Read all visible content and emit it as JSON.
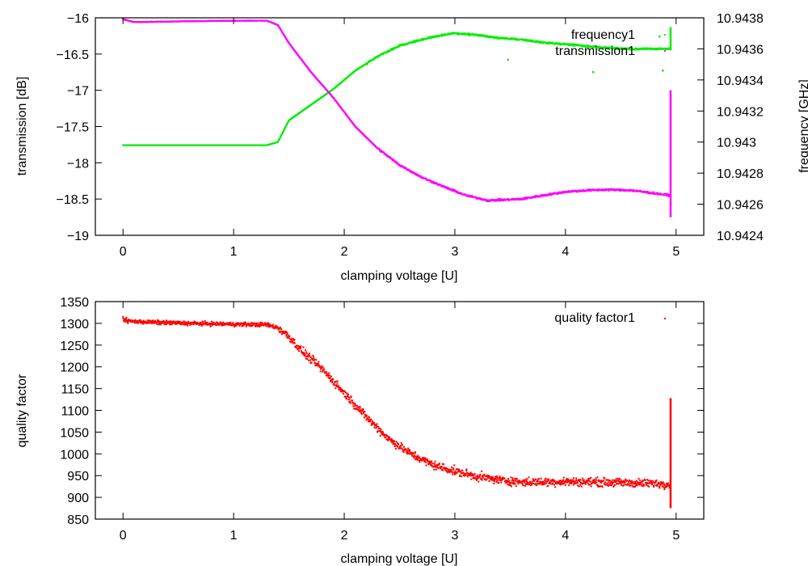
{
  "chart_data": [
    {
      "type": "scatter",
      "xlabel": "clamping voltage [U]",
      "ylabel": "transmission [dB]",
      "y2label": "frequency [GHz]",
      "xlim": [
        -0.25,
        5.25
      ],
      "ylim": [
        -19,
        -16
      ],
      "y2lim": [
        10.9424,
        10.9438
      ],
      "xticks": [
        "0",
        "1",
        "2",
        "3",
        "4",
        "5"
      ],
      "yticks": [
        "-16",
        "-16.5",
        "-17",
        "-17.5",
        "-18",
        "-18.5",
        "-19"
      ],
      "y2ticks": [
        "10.9438",
        "10.9436",
        "10.9434",
        "10.9432",
        "10.943",
        "10.9428",
        "10.9426",
        "10.9424"
      ],
      "legend_position": "top-right",
      "grid": false,
      "series": [
        {
          "name": "frequency1",
          "axis": "y2",
          "color": "#00ee00",
          "x": [
            0,
            0.5,
            1.0,
            1.3,
            1.4,
            1.5,
            1.7,
            1.9,
            2.1,
            2.3,
            2.5,
            2.7,
            2.9,
            3.0,
            3.2,
            3.4,
            3.6,
            3.8,
            4.0,
            4.3,
            4.6,
            4.8,
            4.95
          ],
          "y": [
            10.94298,
            10.94298,
            10.94298,
            10.94298,
            10.943,
            10.94314,
            10.94324,
            10.94334,
            10.94346,
            10.94355,
            10.94362,
            10.94366,
            10.94369,
            10.9437,
            10.94369,
            10.94367,
            10.94366,
            10.94364,
            10.94363,
            10.94361,
            10.9436,
            10.9436,
            10.9436
          ],
          "outliers": [
            {
              "x": 3.48,
              "y": 10.94353
            },
            {
              "x": 4.25,
              "y": 10.94345
            },
            {
              "x": 4.85,
              "y": 10.94368
            },
            {
              "x": 4.88,
              "y": 10.94346
            }
          ]
        },
        {
          "name": "transmission1",
          "axis": "y",
          "color": "#ff00ff",
          "x": [
            0,
            0.1,
            0.5,
            1.0,
            1.3,
            1.4,
            1.5,
            1.7,
            1.9,
            2.1,
            2.3,
            2.5,
            2.7,
            2.9,
            3.1,
            3.3,
            3.6,
            3.8,
            4.0,
            4.2,
            4.4,
            4.6,
            4.8,
            4.95
          ],
          "y": [
            -16.02,
            -16.06,
            -16.05,
            -16.04,
            -16.04,
            -16.1,
            -16.35,
            -16.75,
            -17.1,
            -17.5,
            -17.8,
            -18.03,
            -18.2,
            -18.33,
            -18.45,
            -18.52,
            -18.5,
            -18.45,
            -18.4,
            -18.38,
            -18.37,
            -18.38,
            -18.42,
            -18.45
          ]
        }
      ],
      "vertical_spread": [
        {
          "series": "transmission1",
          "x": 4.95,
          "from": -17.0,
          "to": -18.75
        },
        {
          "series": "frequency1",
          "x": 4.95,
          "from": 10.94359,
          "to": 10.94374
        }
      ]
    },
    {
      "type": "scatter",
      "xlabel": "clamping voltage [U]",
      "ylabel": "quality factor",
      "xlim": [
        -0.25,
        5.25
      ],
      "ylim": [
        850,
        1350
      ],
      "xticks": [
        "0",
        "1",
        "2",
        "3",
        "4",
        "5"
      ],
      "yticks": [
        "1350",
        "1300",
        "1250",
        "1200",
        "1150",
        "1100",
        "1050",
        "1000",
        "950",
        "900",
        "850"
      ],
      "legend_position": "top-right",
      "grid": false,
      "series": [
        {
          "name": "quality factor1",
          "color": "#ff0000",
          "x": [
            0,
            0.05,
            0.3,
            0.6,
            1.0,
            1.3,
            1.4,
            1.5,
            1.6,
            1.8,
            2.0,
            2.2,
            2.4,
            2.6,
            2.8,
            3.0,
            3.2,
            3.4,
            3.6,
            3.8,
            4.0,
            4.3,
            4.6,
            4.8,
            4.95
          ],
          "y": [
            1310,
            1305,
            1302,
            1300,
            1298,
            1297,
            1290,
            1270,
            1240,
            1195,
            1140,
            1085,
            1035,
            1000,
            975,
            960,
            948,
            940,
            935,
            935,
            936,
            935,
            933,
            932,
            930
          ],
          "noise": 10
        }
      ],
      "vertical_spread": [
        {
          "series": "quality factor1",
          "x": 4.95,
          "from": 875,
          "to": 1128
        }
      ]
    }
  ]
}
